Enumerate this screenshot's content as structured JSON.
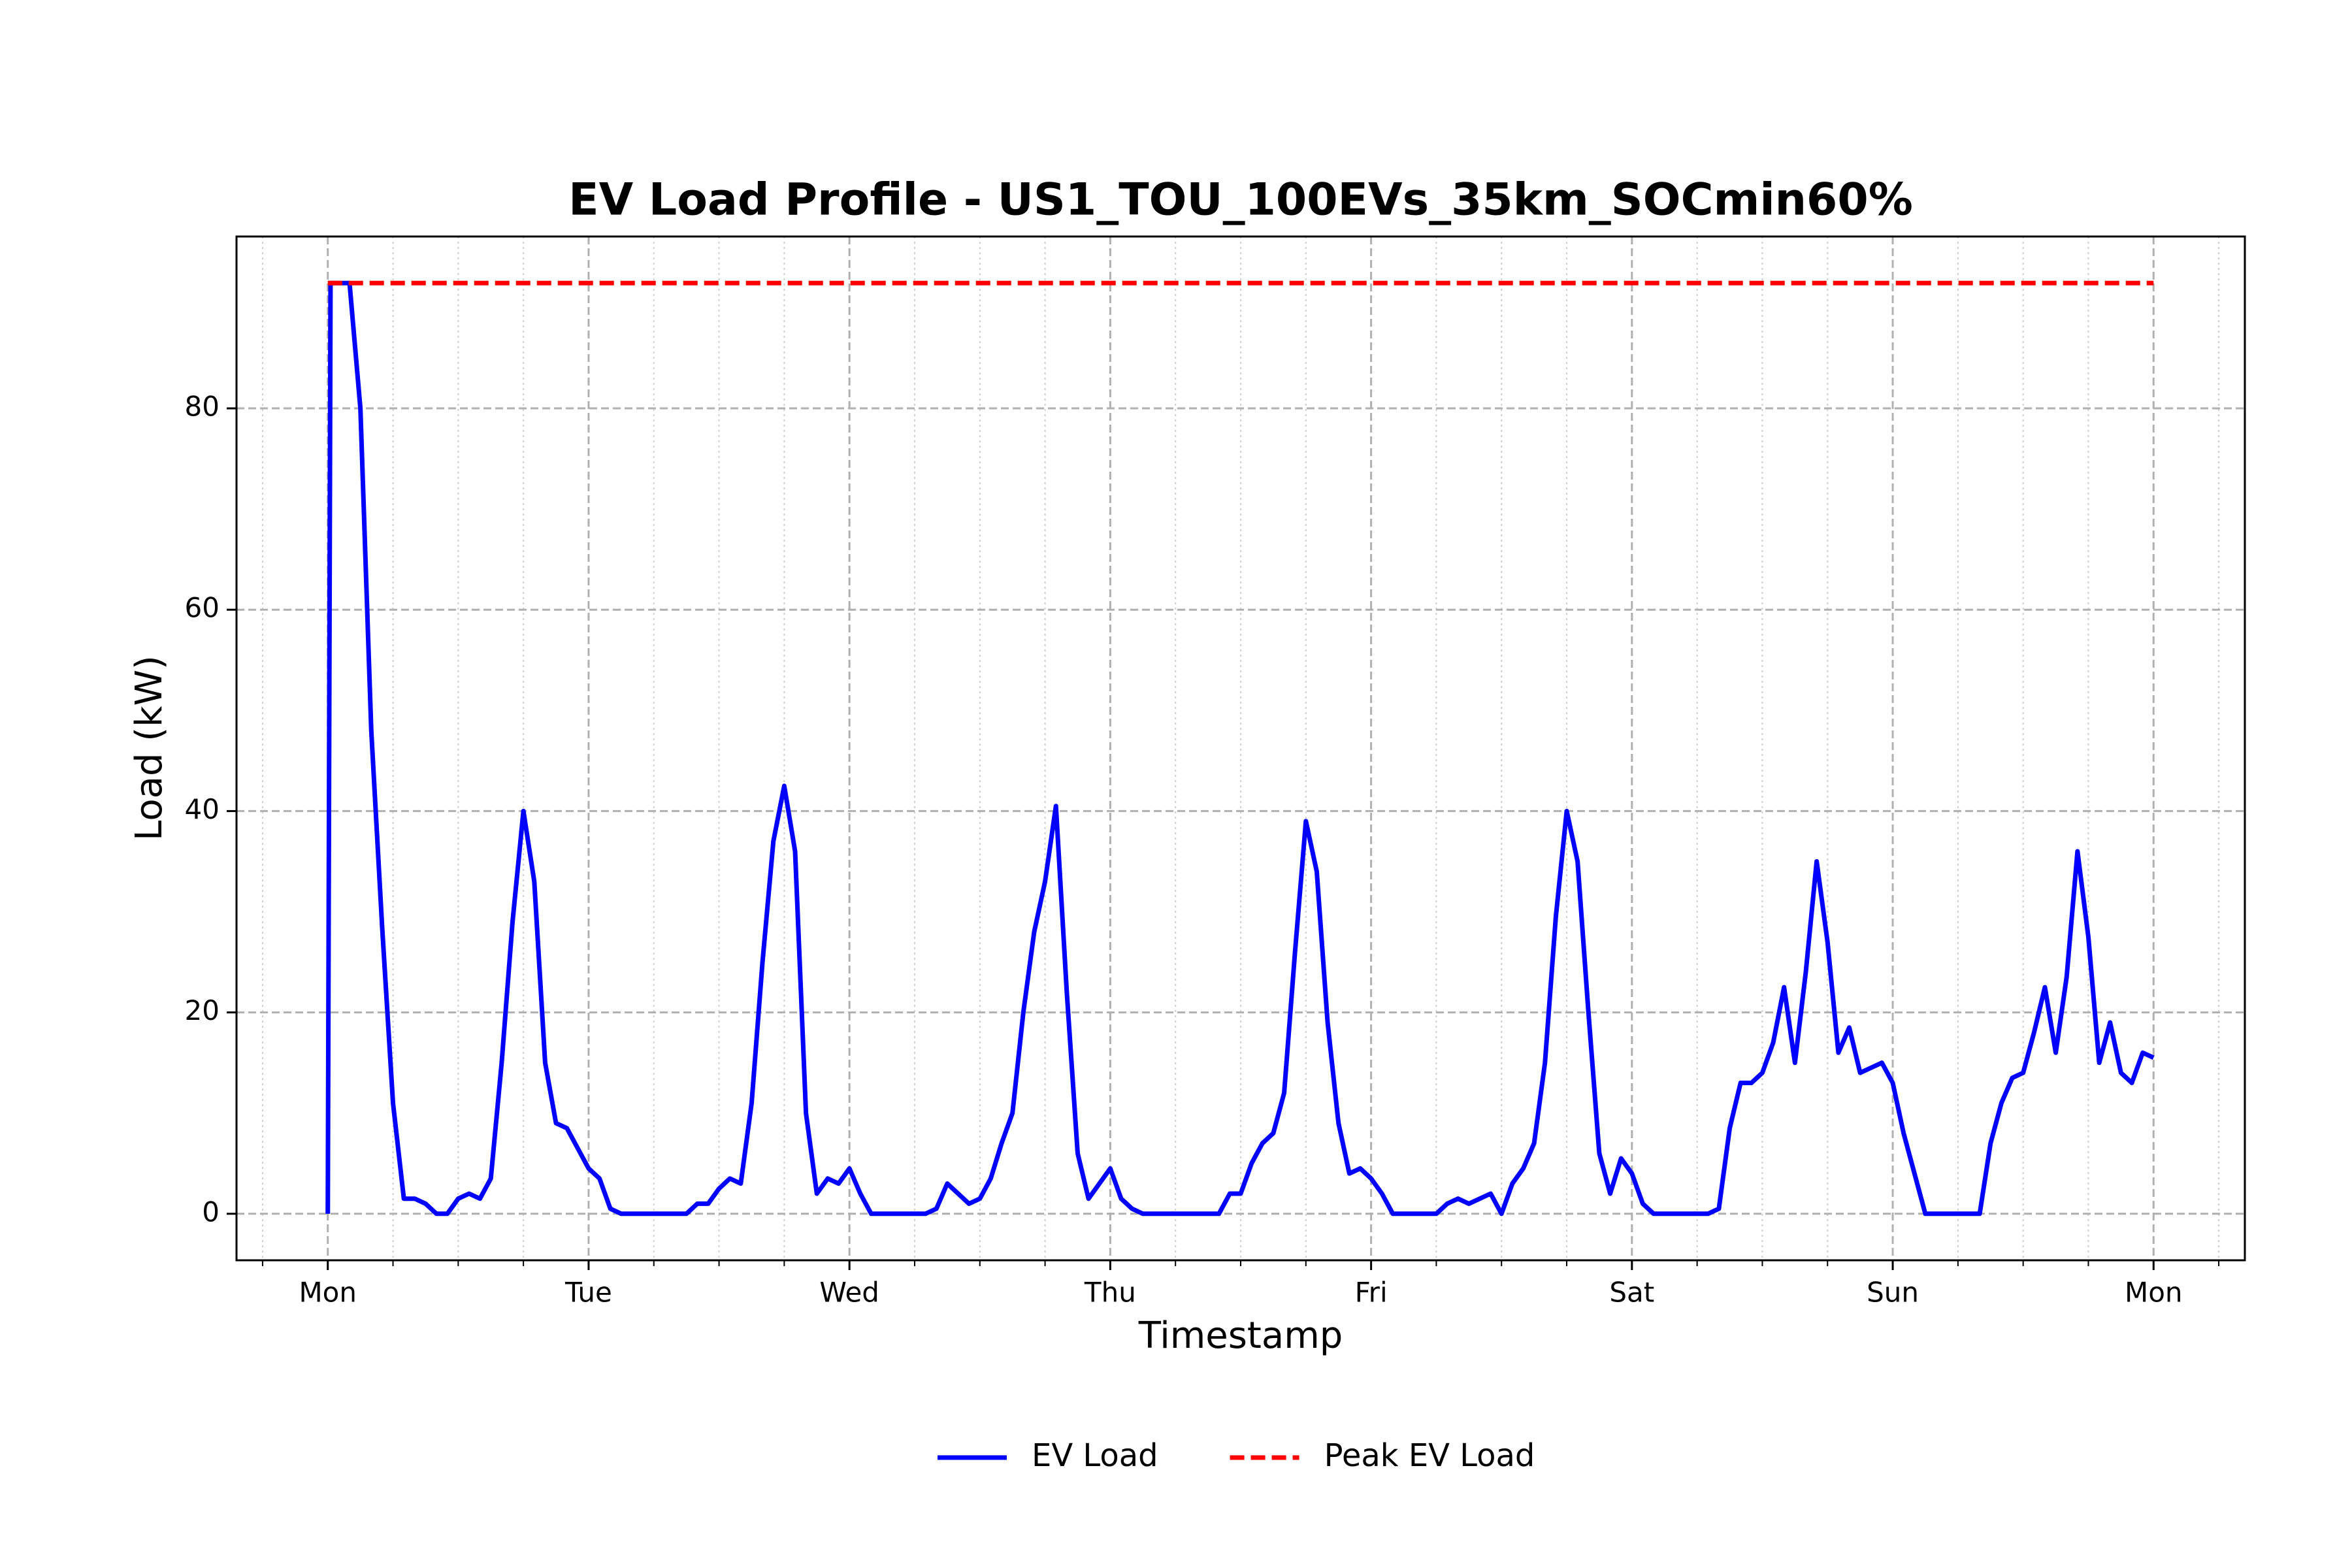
{
  "chart_data": {
    "type": "line",
    "title": "EV Load Profile - US1_TOU_100EVs_35km_SOCmin60%",
    "xlabel": "Timestamp",
    "ylabel": "Load (kW)",
    "xlim": [
      -8.4,
      176.4
    ],
    "ylim": [
      -4.62,
      97.07
    ],
    "xticks": [
      {
        "value": 0,
        "label": "Mon"
      },
      {
        "value": 24,
        "label": "Tue"
      },
      {
        "value": 48,
        "label": "Wed"
      },
      {
        "value": 72,
        "label": "Thu"
      },
      {
        "value": 96,
        "label": "Fri"
      },
      {
        "value": 120,
        "label": "Sat"
      },
      {
        "value": 144,
        "label": "Sun"
      },
      {
        "value": 168,
        "label": "Mon"
      }
    ],
    "xticks_minor": [
      -6,
      6,
      12,
      18,
      30,
      36,
      42,
      54,
      60,
      66,
      78,
      84,
      90,
      102,
      108,
      114,
      126,
      132,
      138,
      150,
      156,
      162,
      174
    ],
    "yticks": [
      0,
      20,
      40,
      60,
      80
    ],
    "grid": true,
    "legend": "below",
    "series": [
      {
        "name": "EV Load",
        "color": "#0000ff",
        "linestyle": "solid",
        "x": [
          0,
          0.25,
          1,
          2,
          3,
          4,
          5,
          6,
          7,
          8,
          9,
          10,
          11,
          12,
          13,
          14,
          15,
          16,
          17,
          18,
          19,
          20,
          21,
          22,
          23,
          24,
          25,
          26,
          27,
          28,
          29,
          30,
          31,
          32,
          33,
          34,
          35,
          36,
          37,
          38,
          39,
          40,
          41,
          42,
          43,
          44,
          45,
          46,
          47,
          48,
          49,
          50,
          51,
          52,
          53,
          54,
          55,
          56,
          57,
          58,
          59,
          60,
          61,
          62,
          63,
          64,
          65,
          66,
          67,
          68,
          69,
          70,
          71,
          72,
          73,
          74,
          75,
          76,
          77,
          78,
          79,
          80,
          81,
          82,
          83,
          84,
          85,
          86,
          87,
          88,
          89,
          90,
          91,
          92,
          93,
          94,
          95,
          96,
          97,
          98,
          99,
          100,
          101,
          102,
          103,
          104,
          105,
          106,
          107,
          108,
          109,
          110,
          111,
          112,
          113,
          114,
          115,
          116,
          117,
          118,
          119,
          120,
          121,
          122,
          123,
          124,
          125,
          126,
          127,
          128,
          129,
          130,
          131,
          132,
          133,
          134,
          135,
          136,
          137,
          138,
          139,
          140,
          141,
          142,
          143,
          144,
          145,
          146,
          147,
          148,
          149,
          150,
          151,
          152,
          153,
          154,
          155,
          156,
          157,
          158,
          159,
          160,
          161,
          162,
          163,
          164,
          165,
          166,
          167,
          168
        ],
        "values": [
          0,
          92.45,
          92.45,
          92.45,
          80,
          48,
          28.5,
          11,
          1.5,
          1.5,
          1,
          0,
          0,
          1.5,
          2,
          1.5,
          3.5,
          15,
          29,
          40,
          33,
          15,
          9,
          8.5,
          6.5,
          4.5,
          3.5,
          0.5,
          0,
          0,
          0,
          0,
          0,
          0,
          0,
          1,
          1,
          2.5,
          3.5,
          3,
          11,
          25,
          37,
          42.5,
          36,
          10,
          2,
          3.5,
          3,
          4.5,
          2,
          0,
          0,
          0,
          0,
          0,
          0,
          0.5,
          3,
          2,
          1,
          1.5,
          3.5,
          7,
          10,
          20,
          28,
          33,
          40.5,
          22,
          6,
          1.5,
          3,
          4.5,
          1.5,
          0.5,
          0,
          0,
          0,
          0,
          0,
          0,
          0,
          0,
          2,
          2,
          5,
          7,
          8,
          12,
          26,
          39,
          34,
          19,
          9,
          4,
          4.5,
          3.5,
          2,
          0,
          0,
          0,
          0,
          0,
          1,
          1.5,
          1,
          1.5,
          2,
          0,
          3,
          4.5,
          7,
          15,
          29.5,
          40,
          35,
          20,
          6,
          2,
          5.5,
          4,
          1,
          0,
          0,
          0,
          0,
          0,
          0,
          0.5,
          8.5,
          13,
          13,
          14,
          17,
          22.5,
          15,
          24,
          35,
          27,
          16,
          18.5,
          14,
          14.5,
          15,
          13,
          8,
          4,
          0,
          0,
          0,
          0,
          0,
          0,
          7,
          11,
          13.5,
          14,
          18,
          22.5,
          16,
          23.5,
          36,
          27.5,
          15,
          19,
          14,
          13,
          16,
          15.5
        ]
      },
      {
        "name": "Peak EV Load",
        "color": "#ff0000",
        "linestyle": "dashed",
        "x": [
          0,
          168
        ],
        "values": [
          92.45,
          92.45
        ]
      }
    ]
  }
}
